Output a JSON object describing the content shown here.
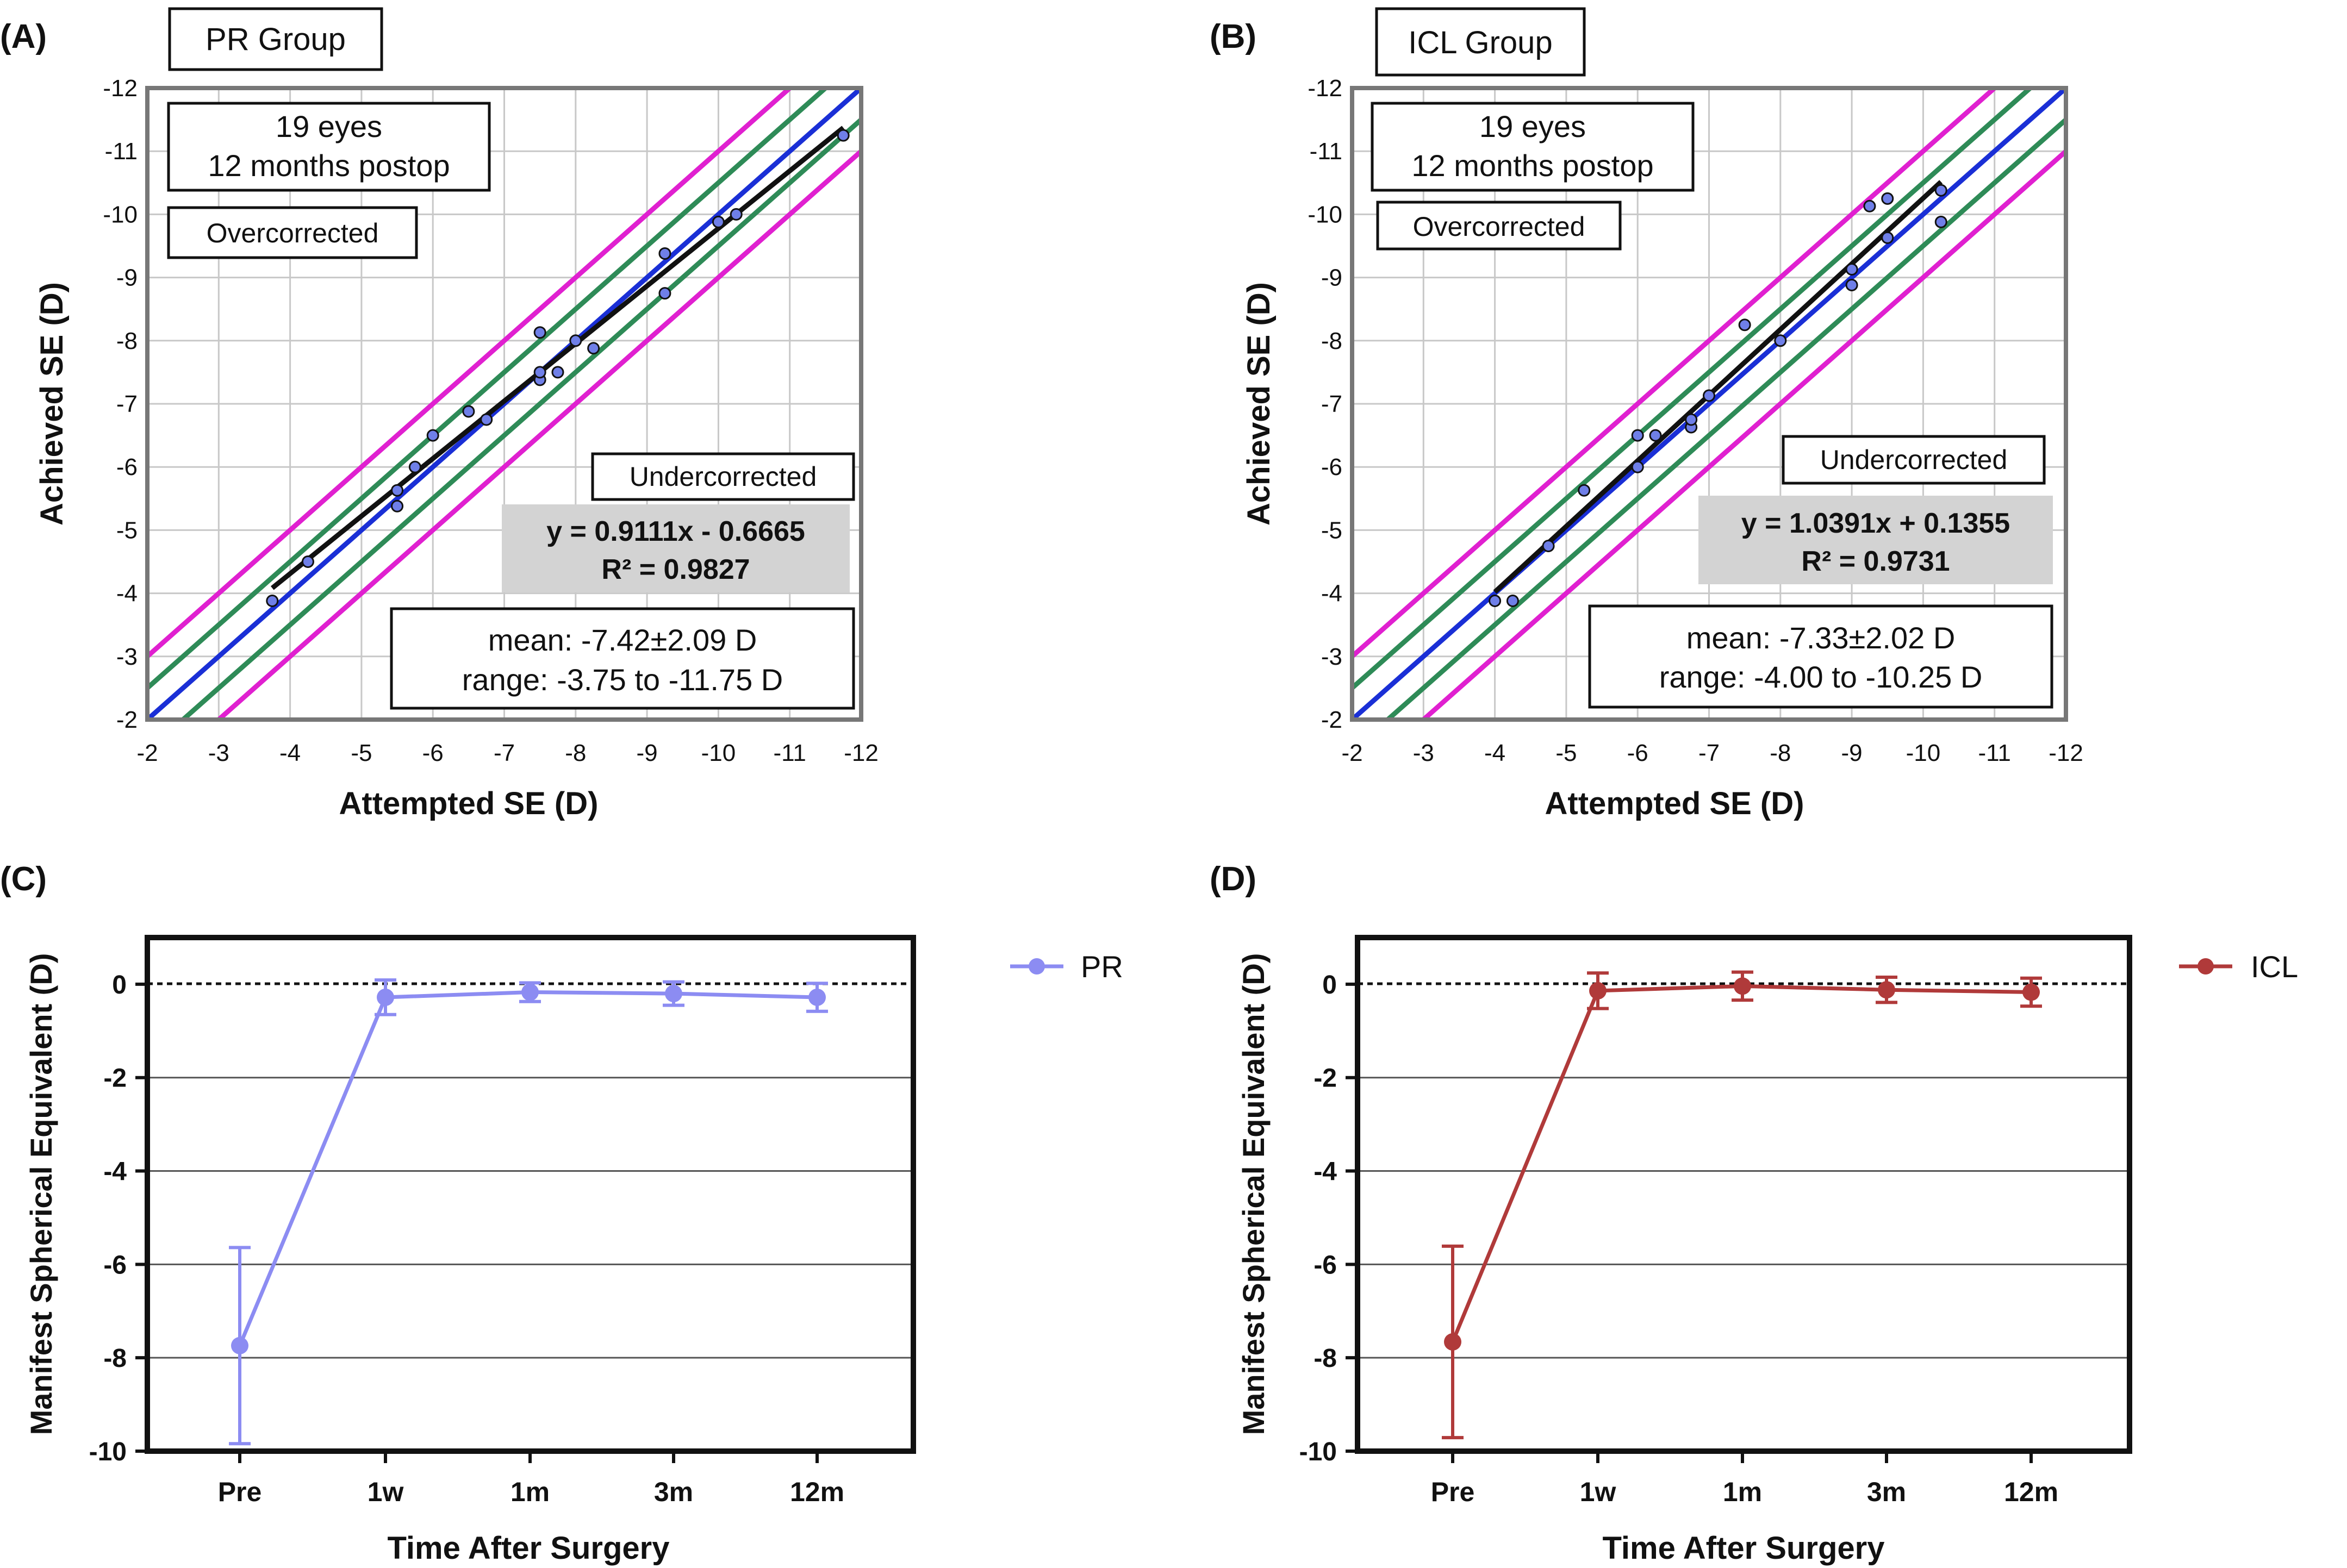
{
  "chart_data": [
    {
      "type": "scatter",
      "panel_label": "(A)",
      "group_label": "PR Group",
      "info": [
        "19 eyes",
        "12 months postop"
      ],
      "over_label": "Overcorrected",
      "under_label": "Undercorrected",
      "equation": "y = 0.9111x - 0.6665",
      "r2": "R² = 0.9827",
      "stats": [
        "mean: -7.42±2.09 D",
        "range: -3.75 to -11.75 D"
      ],
      "xlabel": "Attempted SE (D)",
      "ylabel": "Achieved SE (D)",
      "xticks": [
        "-2",
        "-3",
        "-4",
        "-5",
        "-6",
        "-7",
        "-8",
        "-9",
        "-10",
        "-11",
        "-12"
      ],
      "yticks": [
        "-2",
        "-3",
        "-4",
        "-5",
        "-6",
        "-7",
        "-8",
        "-9",
        "-10",
        "-11",
        "-12"
      ],
      "xlim": [
        -2,
        -12
      ],
      "ylim": [
        -2,
        -12
      ],
      "fit": {
        "slope": 0.9111,
        "intercept": -0.6665,
        "x_from": -3.75,
        "x_to": -11.75
      },
      "bands": [
        {
          "offset": 0,
          "color": "#1a2fd6"
        },
        {
          "offset": 0.5,
          "color": "#2e8b57"
        },
        {
          "offset": -0.5,
          "color": "#2e8b57"
        },
        {
          "offset": 1.0,
          "color": "#e020d0"
        },
        {
          "offset": -1.0,
          "color": "#e020d0"
        }
      ],
      "points": [
        [
          -3.75,
          -3.88
        ],
        [
          -4.25,
          -4.5
        ],
        [
          -5.5,
          -5.38
        ],
        [
          -5.5,
          -5.63
        ],
        [
          -5.75,
          -6.0
        ],
        [
          -6.0,
          -6.5
        ],
        [
          -6.5,
          -6.88
        ],
        [
          -6.75,
          -6.75
        ],
        [
          -7.5,
          -7.38
        ],
        [
          -7.5,
          -7.5
        ],
        [
          -7.5,
          -8.13
        ],
        [
          -7.75,
          -7.5
        ],
        [
          -8.0,
          -8.0
        ],
        [
          -8.25,
          -7.88
        ],
        [
          -9.25,
          -8.75
        ],
        [
          -9.25,
          -9.38
        ],
        [
          -10.0,
          -9.88
        ],
        [
          -10.25,
          -10.0
        ],
        [
          -11.75,
          -11.25
        ]
      ],
      "fit_color": "#111111",
      "point_color": "#6f7fe8"
    },
    {
      "type": "scatter",
      "panel_label": "(B)",
      "group_label": "ICL Group",
      "info": [
        "19 eyes",
        "12 months postop"
      ],
      "over_label": "Overcorrected",
      "under_label": "Undercorrected",
      "equation": "y = 1.0391x + 0.1355",
      "r2": "R² = 0.9731",
      "stats": [
        "mean: -7.33±2.02 D",
        "range: -4.00 to -10.25 D"
      ],
      "xlabel": "Attempted SE (D)",
      "ylabel": "Achieved SE (D)",
      "xticks": [
        "-2",
        "-3",
        "-4",
        "-5",
        "-6",
        "-7",
        "-8",
        "-9",
        "-10",
        "-11",
        "-12"
      ],
      "yticks": [
        "-2",
        "-3",
        "-4",
        "-5",
        "-6",
        "-7",
        "-8",
        "-9",
        "-10",
        "-11",
        "-12"
      ],
      "xlim": [
        -2,
        -12
      ],
      "ylim": [
        -2,
        -12
      ],
      "fit": {
        "slope": 1.0391,
        "intercept": 0.1355,
        "x_from": -4.0,
        "x_to": -10.25
      },
      "bands": [
        {
          "offset": 0,
          "color": "#1a2fd6"
        },
        {
          "offset": 0.5,
          "color": "#2e8b57"
        },
        {
          "offset": -0.5,
          "color": "#2e8b57"
        },
        {
          "offset": 1.0,
          "color": "#e020d0"
        },
        {
          "offset": -1.0,
          "color": "#e020d0"
        }
      ],
      "points": [
        [
          -4.0,
          -3.88
        ],
        [
          -4.25,
          -3.88
        ],
        [
          -4.75,
          -4.75
        ],
        [
          -5.25,
          -5.63
        ],
        [
          -6.0,
          -6.0
        ],
        [
          -6.0,
          -6.5
        ],
        [
          -6.25,
          -6.5
        ],
        [
          -6.75,
          -6.63
        ],
        [
          -6.75,
          -6.75
        ],
        [
          -7.0,
          -7.13
        ],
        [
          -7.5,
          -8.25
        ],
        [
          -8.0,
          -8.0
        ],
        [
          -9.0,
          -8.88
        ],
        [
          -9.0,
          -9.13
        ],
        [
          -9.25,
          -10.13
        ],
        [
          -9.5,
          -9.63
        ],
        [
          -9.5,
          -10.25
        ],
        [
          -10.25,
          -9.88
        ],
        [
          -10.25,
          -10.38
        ]
      ],
      "fit_color": "#111111",
      "point_color": "#6f7fe8"
    },
    {
      "type": "line",
      "panel_label": "(C)",
      "series_name": "PR",
      "color": "#8c8cf2",
      "categories": [
        "Pre",
        "1w",
        "1m",
        "3m",
        "12m"
      ],
      "values": [
        -7.74,
        -0.28,
        -0.17,
        -0.2,
        -0.28
      ],
      "error": [
        2.1,
        0.37,
        0.2,
        0.25,
        0.3
      ],
      "xlabel": "Time After Surgery",
      "ylabel": "Manifest Spherical Equivalent (D)",
      "yticks": [
        "0",
        "-2",
        "-4",
        "-6",
        "-8",
        "-10"
      ],
      "ylim": [
        -10,
        1
      ]
    },
    {
      "type": "line",
      "panel_label": "(D)",
      "series_name": "ICL",
      "color": "#b03a3a",
      "categories": [
        "Pre",
        "1w",
        "1m",
        "3m",
        "12m"
      ],
      "values": [
        -7.66,
        -0.14,
        -0.04,
        -0.12,
        -0.17
      ],
      "error": [
        2.05,
        0.38,
        0.3,
        0.27,
        0.3
      ],
      "xlabel": "Time After Surgery",
      "ylabel": "Manifest Spherical Equivalent (D)",
      "yticks": [
        "0",
        "-2",
        "-4",
        "-6",
        "-8",
        "-10"
      ],
      "ylim": [
        -10,
        1
      ]
    }
  ]
}
